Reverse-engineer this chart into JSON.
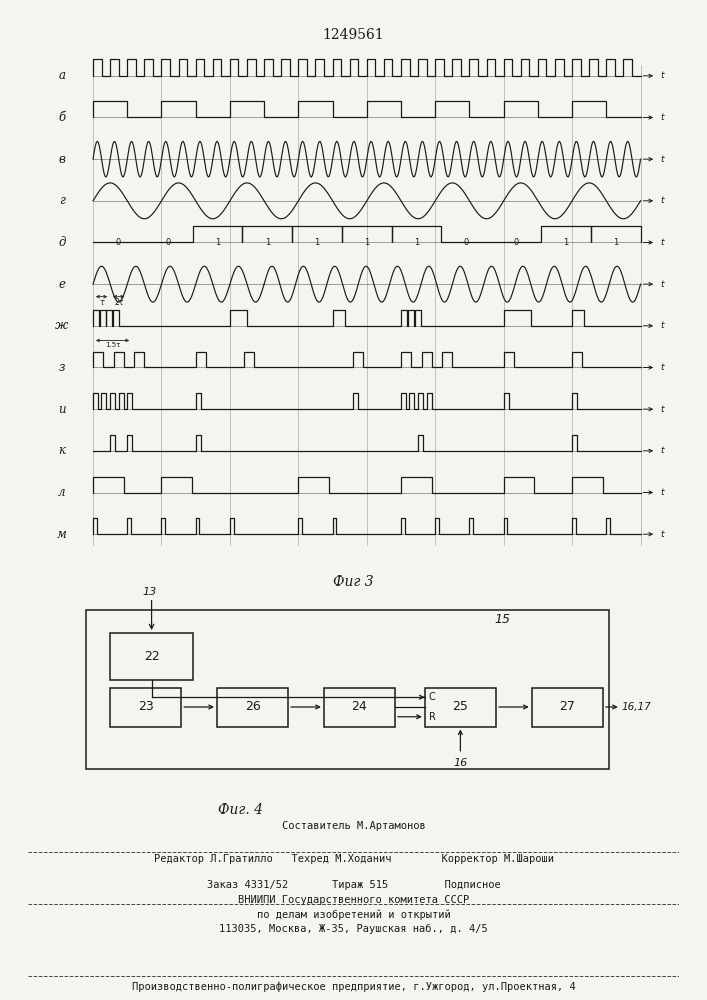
{
  "title": "1249561",
  "fig3_label": "Фиг 3",
  "fig4_label": "Фиг. 4",
  "row_labels": [
    "а",
    "б",
    "в",
    "г",
    "д",
    "е",
    "ж",
    "з",
    "и",
    "к",
    "л",
    "м"
  ],
  "background_color": "#f5f5f0",
  "line_color": "#1a1a1a",
  "footer_lines": [
    "Составитель М.Артамонов",
    "Редактор Л.Гратилло   Техред М.Ходанич        Корректор М.Шароши",
    "Заказ 4331/52       Тираж 515         Подписное",
    "ВНИИПИ Государственного комитета СССР",
    "по делам изобретений и открытий",
    "113035, Москва, Ж-35, Раушская наб., д. 4/5",
    "Производственно-полиграфическое предприятие, г.Ужгород, ул.Проектная, 4"
  ]
}
